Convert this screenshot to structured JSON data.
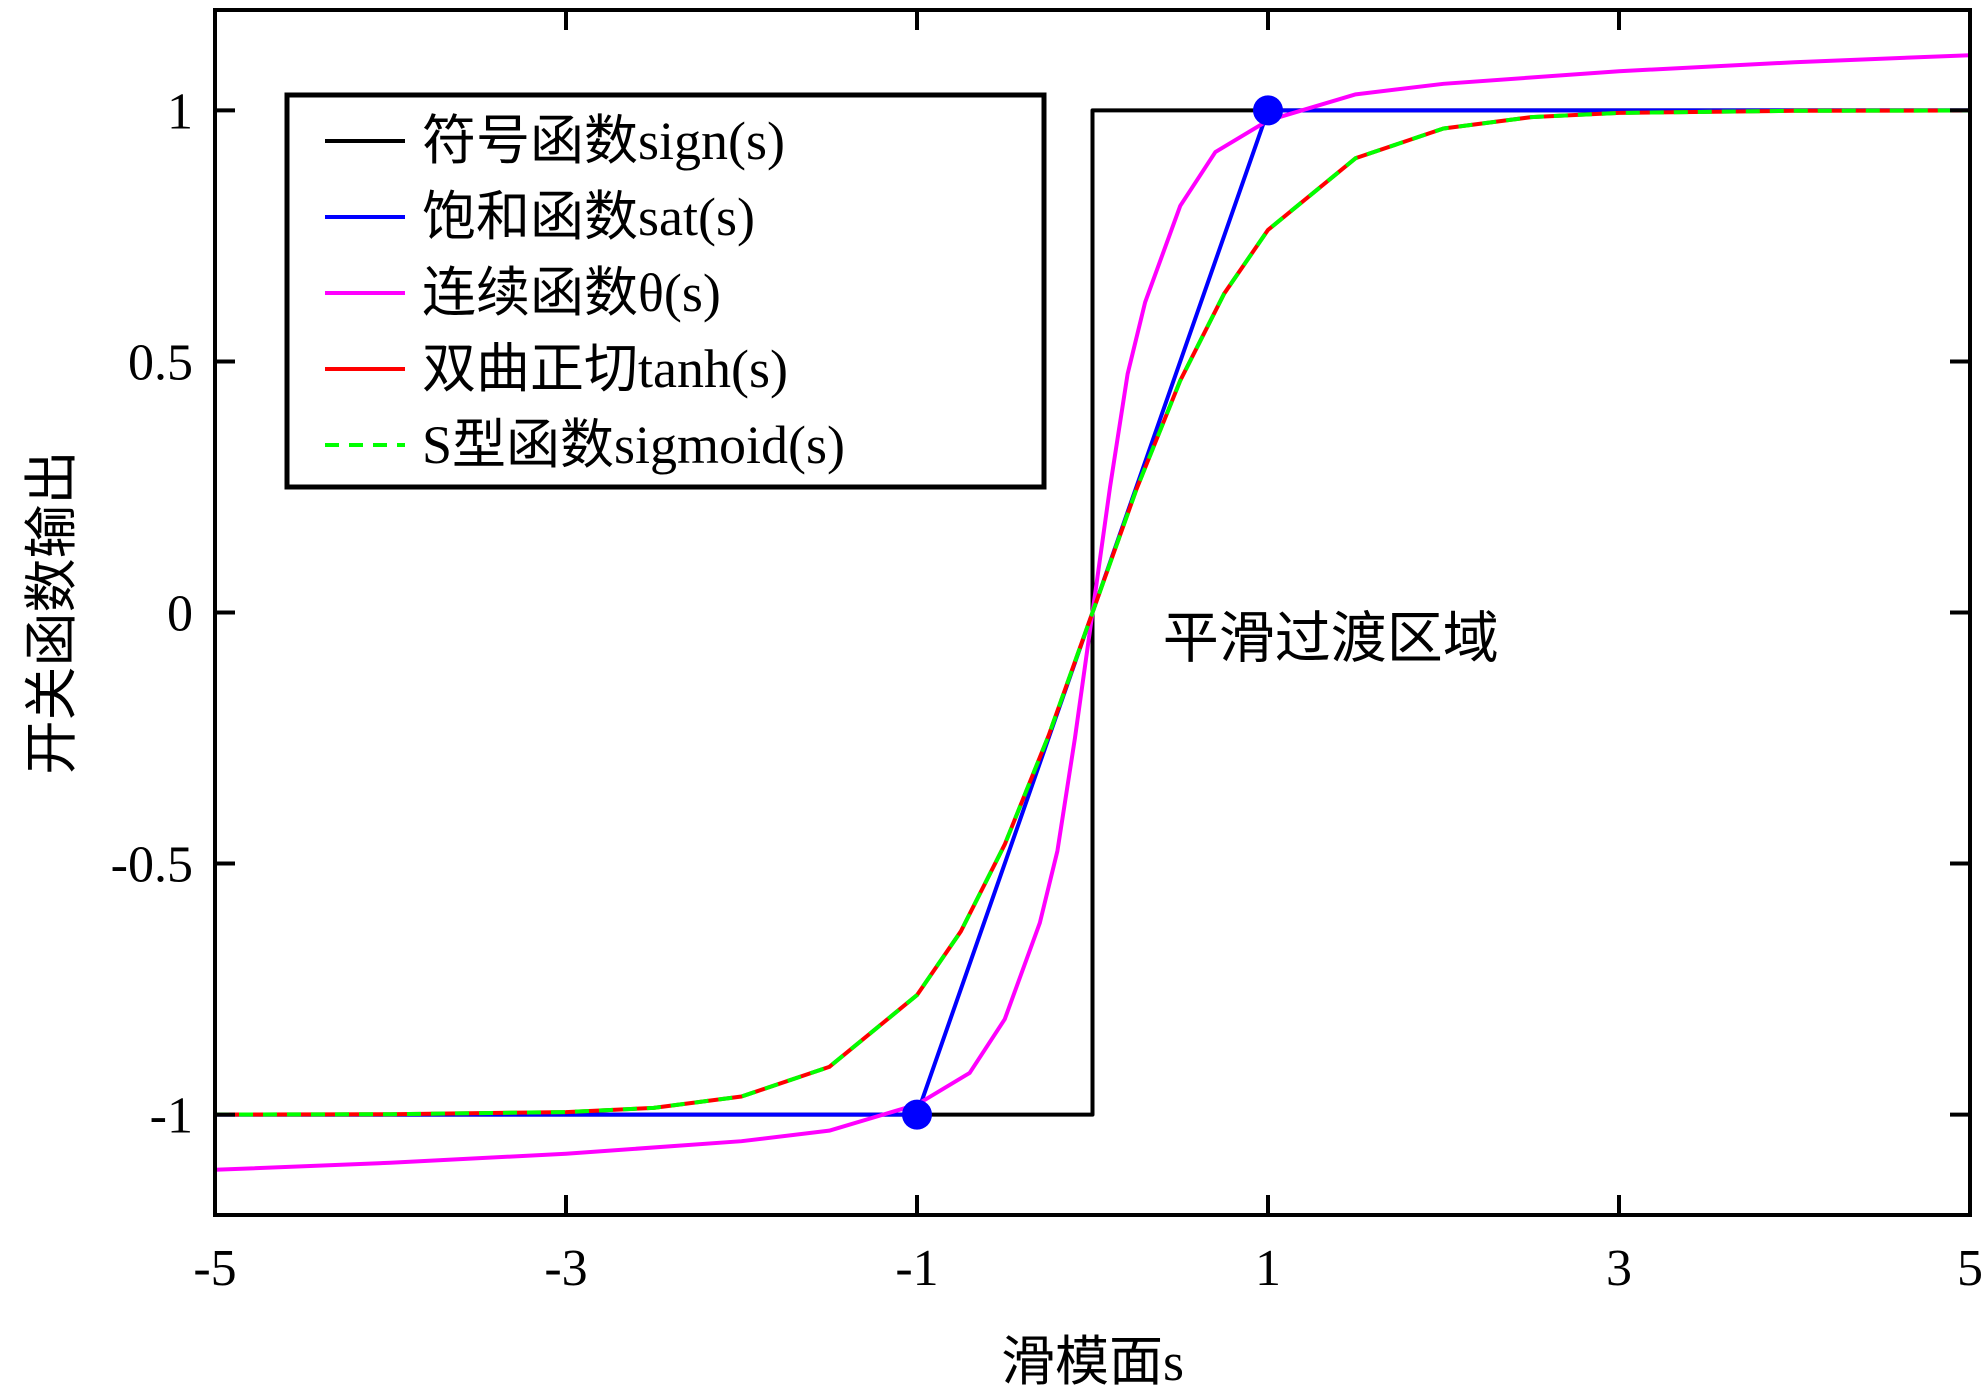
{
  "chart_data": {
    "type": "line",
    "xlabel": "滑模面s",
    "ylabel": "开关函数输出",
    "xlim": [
      -5,
      5
    ],
    "ylim": [
      -1.2,
      1.2
    ],
    "xticks": [
      -5,
      -3,
      -1,
      1,
      3,
      5
    ],
    "xtick_labels": [
      "-5",
      "-3",
      "-1",
      "1",
      "3",
      "5"
    ],
    "yticks": [
      -1,
      -0.5,
      0,
      0.5,
      1
    ],
    "ytick_labels": [
      "-1",
      "-0.5",
      "0",
      "0.5",
      "1"
    ],
    "grid": false,
    "legend_position": "top-left",
    "annotation": {
      "text": "平滑过渡区域",
      "x": 0.4,
      "y": -0.05
    },
    "series": [
      {
        "name": "符号函数sign(s)",
        "color": "#000000",
        "dash": "solid",
        "x": [
          -5,
          0,
          0,
          5
        ],
        "y": [
          -1,
          -1,
          1,
          1
        ]
      },
      {
        "name": "饱和函数sat(s)",
        "color": "#0000ff",
        "dash": "solid",
        "x": [
          -5,
          -1,
          1,
          5
        ],
        "y": [
          -1,
          -1,
          1,
          1
        ]
      },
      {
        "name": "连续函数θ(s)",
        "color": "#ff00ff",
        "dash": "solid",
        "x": [
          -5,
          -4,
          -3,
          -2,
          -1.5,
          -1,
          -0.7,
          -0.5,
          -0.3,
          -0.2,
          -0.1,
          0,
          0.1,
          0.2,
          0.3,
          0.5,
          0.7,
          1,
          1.5,
          2,
          3,
          4,
          5
        ],
        "y": [
          -1.11,
          -1.096,
          -1.078,
          -1.053,
          -1.032,
          -0.98,
          -0.917,
          -0.81,
          -0.618,
          -0.475,
          -0.25,
          0,
          0.25,
          0.475,
          0.618,
          0.81,
          0.917,
          0.98,
          1.032,
          1.053,
          1.078,
          1.096,
          1.11
        ]
      },
      {
        "name": "双曲正切tanh(s)",
        "color": "#ff0000",
        "dash": "solid",
        "x": [
          -5,
          -4,
          -3,
          -2.5,
          -2,
          -1.5,
          -1,
          -0.75,
          -0.5,
          -0.25,
          0,
          0.25,
          0.5,
          0.75,
          1,
          1.5,
          2,
          2.5,
          3,
          4,
          5
        ],
        "y": [
          -0.9999,
          -0.9993,
          -0.995,
          -0.9866,
          -0.964,
          -0.905,
          -0.762,
          -0.635,
          -0.462,
          -0.245,
          0,
          0.245,
          0.462,
          0.635,
          0.762,
          0.905,
          0.964,
          0.9866,
          0.995,
          0.9993,
          0.9999
        ]
      },
      {
        "name": "S型函数sigmoid(s)",
        "color": "#00ff00",
        "dash": "dashed",
        "x": [
          -5,
          -4,
          -3,
          -2.5,
          -2,
          -1.5,
          -1,
          -0.75,
          -0.5,
          -0.25,
          0,
          0.25,
          0.5,
          0.75,
          1,
          1.5,
          2,
          2.5,
          3,
          4,
          5
        ],
        "y": [
          -0.9999,
          -0.9993,
          -0.995,
          -0.9866,
          -0.964,
          -0.905,
          -0.762,
          -0.635,
          -0.462,
          -0.245,
          0,
          0.245,
          0.462,
          0.635,
          0.762,
          0.905,
          0.964,
          0.9866,
          0.995,
          0.9993,
          0.9999
        ]
      }
    ],
    "markers": [
      {
        "x": -1,
        "y": -1,
        "color": "#0000ff"
      },
      {
        "x": 1,
        "y": 1,
        "color": "#0000ff"
      }
    ]
  }
}
